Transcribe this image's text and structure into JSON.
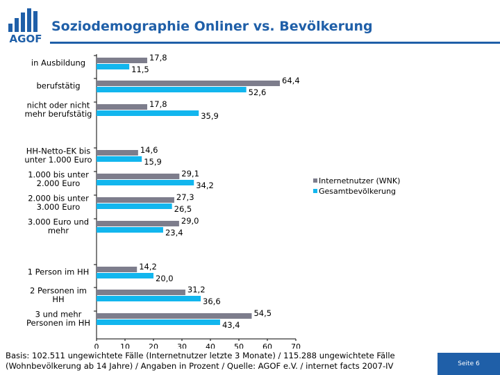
{
  "header": {
    "logo_text": "AGOF",
    "title": "Soziodemographie Onliner vs. Bevölkerung"
  },
  "colors": {
    "brand": "#1f5fa8",
    "series_internet": "#7d7d8c",
    "series_population": "#12b6ee"
  },
  "chart_data": {
    "type": "bar",
    "orientation": "horizontal",
    "categories": [
      "in Ausbildung",
      "berufstätig",
      "nicht oder nicht mehr berufstätig",
      "HH-Netto-EK bis unter 1.000 Euro",
      "1.000 bis unter 2.000 Euro",
      "2.000 bis unter 3.000 Euro",
      "3.000 Euro und mehr",
      "1 Person im HH",
      "2 Personen im HH",
      "3 und mehr Personen im HH"
    ],
    "category_lines": [
      [
        "in Ausbildung"
      ],
      [
        "berufstätig"
      ],
      [
        "nicht oder nicht",
        "mehr berufstätig"
      ],
      [
        "HH-Netto-EK bis",
        "unter 1.000 Euro"
      ],
      [
        "1.000 bis unter",
        "2.000 Euro"
      ],
      [
        "2.000 bis unter",
        "3.000 Euro"
      ],
      [
        "3.000 Euro und",
        "mehr"
      ],
      [
        "1 Person im HH"
      ],
      [
        "2 Personen im",
        "HH"
      ],
      [
        "3 und mehr",
        "Personen im HH"
      ]
    ],
    "series": [
      {
        "name": "Internetnutzer (WNK)",
        "values": [
          17.8,
          64.4,
          17.8,
          14.6,
          29.1,
          27.3,
          29.0,
          14.2,
          31.2,
          54.5
        ],
        "labels": [
          "17,8",
          "64,4",
          "17,8",
          "14,6",
          "29,1",
          "27,3",
          "29,0",
          "14,2",
          "31,2",
          "54,5"
        ]
      },
      {
        "name": "Gesamtbevölkerung",
        "values": [
          11.5,
          52.6,
          35.9,
          15.9,
          34.2,
          26.5,
          23.4,
          20.0,
          36.6,
          43.4
        ],
        "labels": [
          "11,5",
          "52,6",
          "35,9",
          "15,9",
          "34,2",
          "26,5",
          "23,4",
          "20,0",
          "36,6",
          "43,4"
        ]
      }
    ],
    "xlim": [
      0,
      70
    ],
    "xticks": [
      "0",
      "10",
      "20",
      "30",
      "40",
      "50",
      "60",
      "70"
    ],
    "legend_position": "right",
    "grid": false
  },
  "footer": {
    "basis_line1": "Basis: 102.511 ungewichtete Fälle (Internetnutzer letzte 3 Monate) / 115.288 ungewichtete Fälle",
    "basis_line2": "(Wohnbevölkerung ab 14 Jahre) / Angaben in Prozent / Quelle: AGOF e.V. / internet facts 2007-IV",
    "page_label": "Seite 6"
  }
}
